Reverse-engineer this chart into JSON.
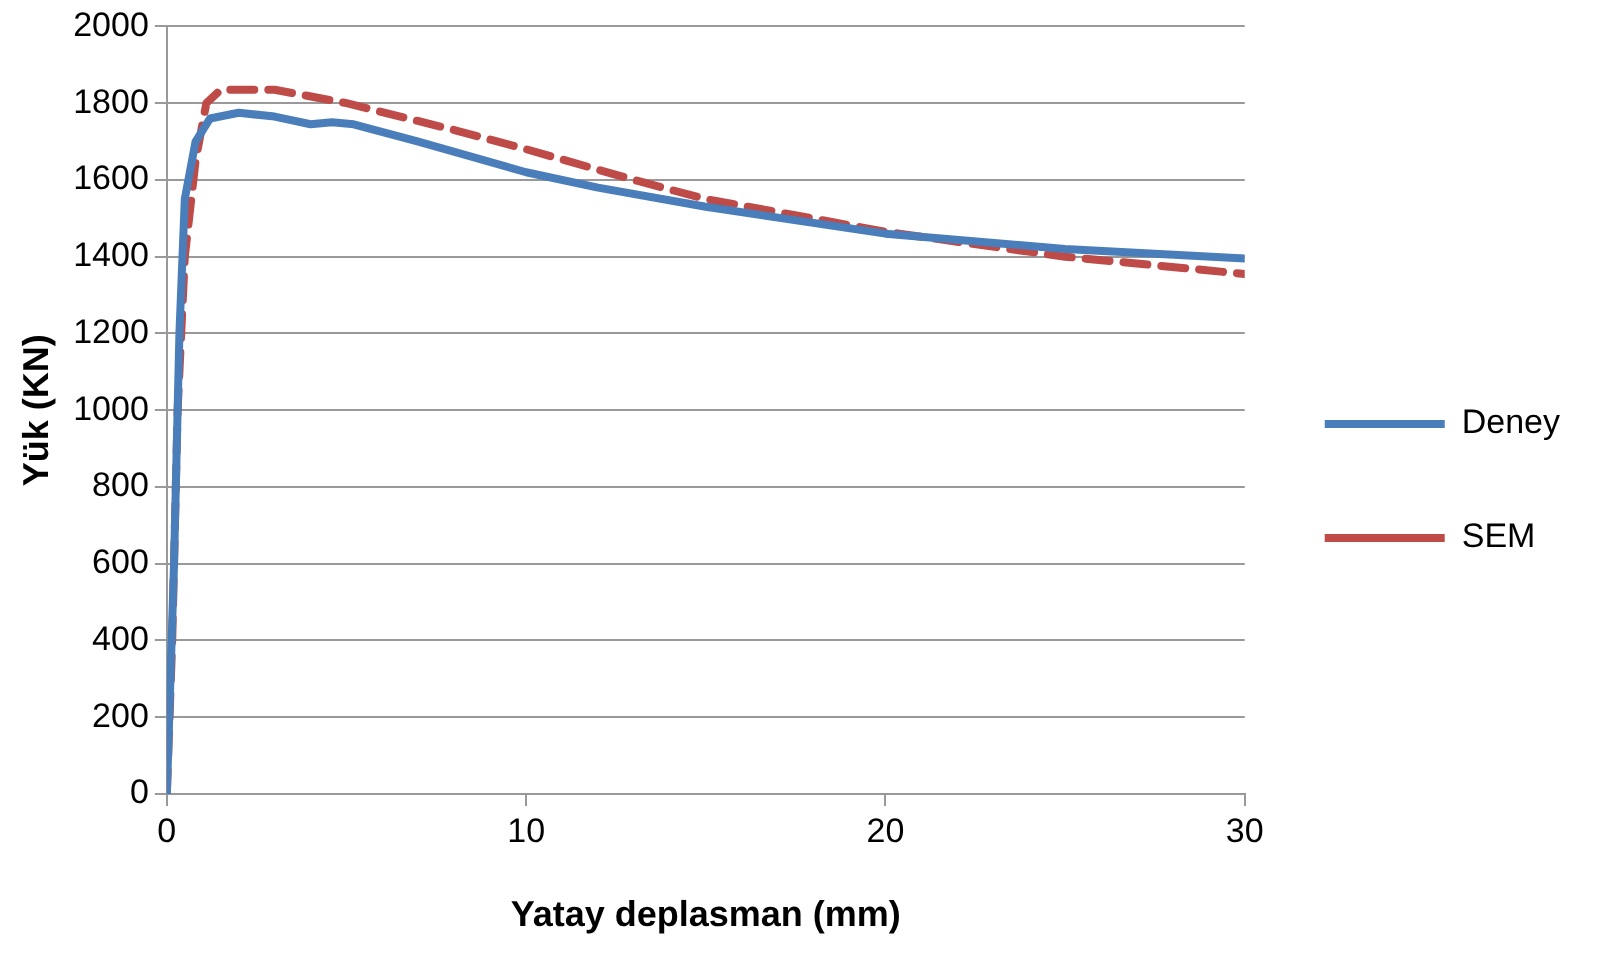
{
  "chart_data": {
    "type": "line",
    "xlabel": "Yatay deplasman (mm)",
    "ylabel": "Yük (KN)",
    "xlim": [
      0,
      30
    ],
    "xticks": [
      0,
      10,
      20,
      30
    ],
    "ylim": [
      0,
      2000
    ],
    "yticks": [
      0,
      200,
      400,
      600,
      800,
      1000,
      1200,
      1400,
      1600,
      1800,
      2000
    ],
    "grid": "y",
    "legend": "right",
    "marker": "none",
    "series": [
      {
        "name": "Deney",
        "color": "#4a7ebb",
        "line_style": "solid",
        "x": [
          0,
          0.2,
          0.35,
          0.5,
          0.8,
          1.2,
          2,
          3,
          4,
          4.6,
          5.2,
          7,
          10,
          12,
          15,
          20,
          25,
          30
        ],
        "values": [
          0,
          600,
          1200,
          1550,
          1700,
          1760,
          1775,
          1765,
          1745,
          1750,
          1745,
          1700,
          1620,
          1580,
          1530,
          1460,
          1420,
          1395
        ]
      },
      {
        "name": "SEM",
        "color": "#be4b48",
        "line_style": "dashed",
        "x": [
          0,
          0.15,
          0.3,
          0.5,
          0.8,
          1.1,
          1.5,
          3,
          5,
          8,
          10,
          13,
          15,
          20,
          25,
          30
        ],
        "values": [
          0,
          400,
          1000,
          1400,
          1650,
          1800,
          1835,
          1835,
          1800,
          1730,
          1680,
          1600,
          1550,
          1465,
          1400,
          1355
        ]
      }
    ]
  }
}
